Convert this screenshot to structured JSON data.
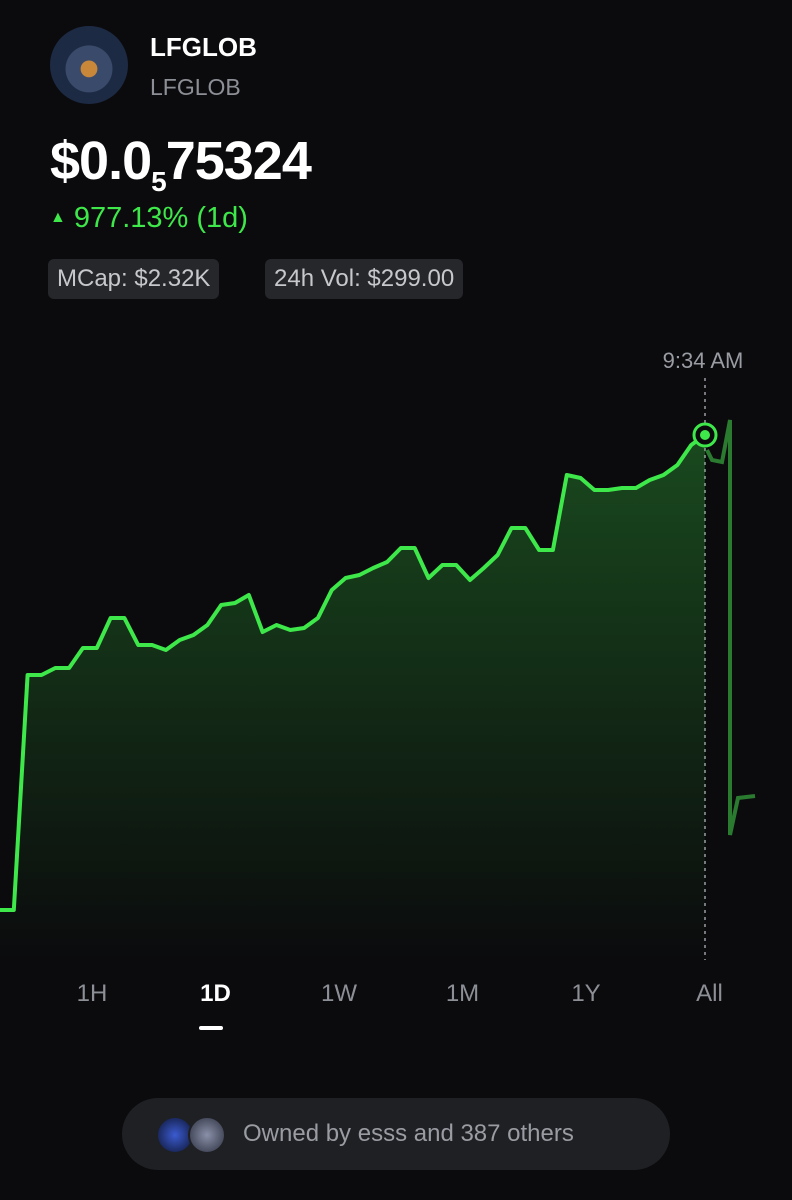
{
  "header": {
    "name": "LFGLOB",
    "symbol": "LFGLOB"
  },
  "price": {
    "prefix": "$0.0",
    "zeros": "5",
    "digits": "75324"
  },
  "change": "977.13% (1d)",
  "stats": [
    "MCap: $2.32K",
    "24h Vol: $299.00"
  ],
  "chart": {
    "type": "line",
    "color": "#3ee84a",
    "marker_label": "9:34 AM",
    "values": [
      40,
      40,
      275,
      275,
      282,
      282,
      302,
      302,
      332,
      332,
      305,
      305,
      300,
      310,
      315,
      325,
      345,
      347,
      355,
      318,
      325,
      320,
      322,
      332,
      360,
      372,
      375,
      382,
      388,
      402,
      402,
      372,
      385,
      385,
      370,
      382,
      395,
      422,
      422,
      400,
      400,
      475,
      472,
      460,
      460,
      462,
      462,
      470,
      475,
      485,
      505,
      515
    ]
  },
  "ranges": {
    "items": [
      "1H",
      "1D",
      "1W",
      "1M",
      "1Y",
      "All"
    ],
    "selected": "1D"
  },
  "owners": "Owned by esss and 387 others"
}
